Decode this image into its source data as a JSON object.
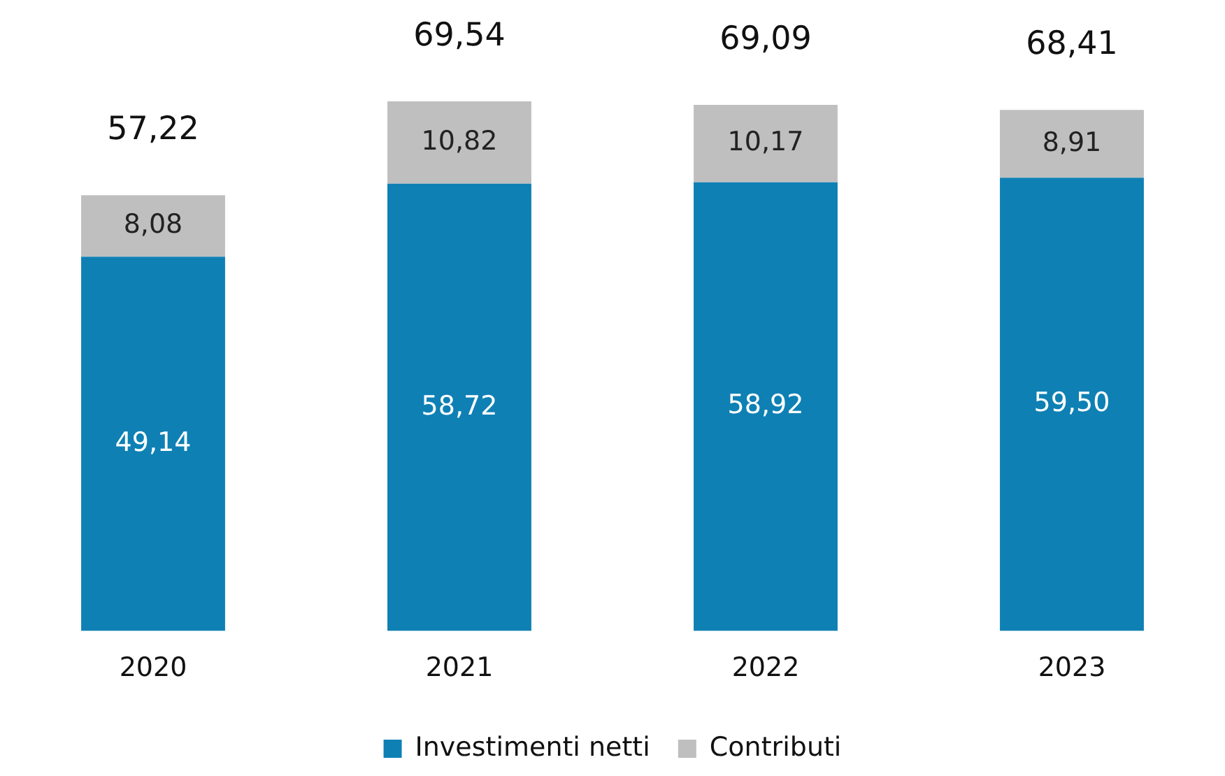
{
  "chart_data": {
    "type": "bar",
    "stacked": true,
    "categories": [
      "2020",
      "2021",
      "2022",
      "2023"
    ],
    "series": [
      {
        "name": "Investimenti netti",
        "color": "#0e80b4",
        "values": [
          49.14,
          58.72,
          58.92,
          59.5
        ],
        "value_labels": [
          "49,14",
          "58,72",
          "58,92",
          "59,50"
        ]
      },
      {
        "name": "Contributi",
        "color": "#bfbfbf",
        "values": [
          8.08,
          10.82,
          10.17,
          8.91
        ],
        "value_labels": [
          "8,08",
          "10,82",
          "10,17",
          "8,91"
        ]
      }
    ],
    "totals": [
      "57,22",
      "69,54",
      "69,09",
      "68,41"
    ],
    "grid": false,
    "legend": "bottom",
    "tick_labels": "x"
  }
}
